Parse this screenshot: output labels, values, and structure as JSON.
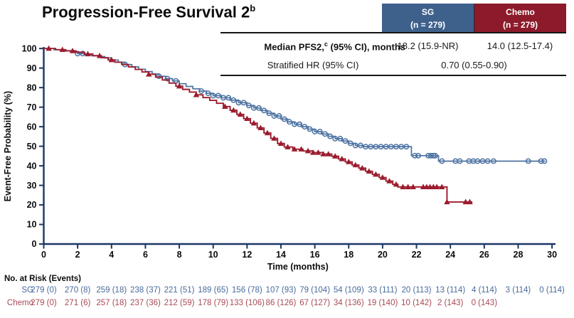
{
  "title": {
    "text": "Progression-Free Survival 2",
    "superscript": "b"
  },
  "summary_table": {
    "columns": [
      {
        "name": "SG",
        "n": "(n = 279)",
        "color": "#3e618c"
      },
      {
        "name": "Chemo",
        "n": "(n = 279)",
        "color": "#8c1a2b"
      }
    ],
    "rows": [
      {
        "label_pre": "Median PFS2,",
        "label_sup": "c",
        "label_post": " (95% CI), months",
        "sg": "18.2 (15.9-NR)",
        "chemo": "14.0 (12.5-17.4)"
      },
      {
        "label": "Stratified HR (95% CI)",
        "value": "0.70 (0.55-0.90)"
      }
    ]
  },
  "chart_data": {
    "type": "line",
    "subtype": "kaplan-meier-step",
    "title": "",
    "xlabel": "Time (months)",
    "ylabel": "Event-Free Probability (%)",
    "xlim": [
      0,
      30
    ],
    "ylim": [
      0,
      100
    ],
    "x_ticks": [
      0,
      2,
      4,
      6,
      8,
      10,
      12,
      14,
      16,
      18,
      20,
      22,
      24,
      26,
      28,
      30
    ],
    "y_ticks": [
      0,
      10,
      20,
      30,
      40,
      50,
      60,
      70,
      80,
      90,
      100
    ],
    "grid": false,
    "legend_position": "none",
    "axis_color": "#1b3765",
    "series": [
      {
        "name": "SG",
        "color": "#4c72a2",
        "marker": "circle",
        "steps": [
          [
            0,
            100
          ],
          [
            0.6,
            99.4
          ],
          [
            1.1,
            98.9
          ],
          [
            1.6,
            98.3
          ],
          [
            2.0,
            97.4
          ],
          [
            2.4,
            96.9
          ],
          [
            2.8,
            96.4
          ],
          [
            3.2,
            95.9
          ],
          [
            3.6,
            95.2
          ],
          [
            4.0,
            94.1
          ],
          [
            4.4,
            93.0
          ],
          [
            4.8,
            91.8
          ],
          [
            5.2,
            90.6
          ],
          [
            5.6,
            89.4
          ],
          [
            6.0,
            88.2
          ],
          [
            6.4,
            87.0
          ],
          [
            6.8,
            85.8
          ],
          [
            7.2,
            84.6
          ],
          [
            7.6,
            83.4
          ],
          [
            8.0,
            82.0
          ],
          [
            8.4,
            80.6
          ],
          [
            8.8,
            79.4
          ],
          [
            9.2,
            78.2
          ],
          [
            9.6,
            77.1
          ],
          [
            10.0,
            75.9
          ],
          [
            10.5,
            74.8
          ],
          [
            11.0,
            73.6
          ],
          [
            11.5,
            72.3
          ],
          [
            12.0,
            70.9
          ],
          [
            12.4,
            69.6
          ],
          [
            12.8,
            68.3
          ],
          [
            13.2,
            66.9
          ],
          [
            13.6,
            65.5
          ],
          [
            14.0,
            63.9
          ],
          [
            14.4,
            62.5
          ],
          [
            14.8,
            61.3
          ],
          [
            15.2,
            60.0
          ],
          [
            15.6,
            58.8
          ],
          [
            16.0,
            57.5
          ],
          [
            16.4,
            56.3
          ],
          [
            16.8,
            55.1
          ],
          [
            17.2,
            53.9
          ],
          [
            17.6,
            52.7
          ],
          [
            18.0,
            51.5
          ],
          [
            18.4,
            50.4
          ],
          [
            18.8,
            49.8
          ],
          [
            21.7,
            45.2
          ],
          [
            23.3,
            42.4
          ],
          [
            29.6,
            42.4
          ]
        ],
        "censor_times": [
          2.0,
          2.3,
          4.8,
          6.8,
          7.3,
          7.8,
          9.3,
          9.7,
          10.0,
          10.3,
          10.6,
          10.9,
          11.2,
          11.5,
          11.8,
          12.1,
          12.4,
          12.7,
          13.0,
          13.3,
          13.6,
          13.9,
          14.2,
          14.5,
          14.8,
          15.1,
          15.4,
          15.7,
          16.0,
          16.3,
          16.6,
          16.9,
          17.2,
          17.5,
          17.8,
          18.1,
          18.4,
          18.7,
          19.0,
          19.3,
          19.6,
          19.9,
          20.2,
          20.5,
          20.8,
          21.1,
          21.4,
          21.9,
          22.1,
          22.7,
          22.85,
          23.0,
          23.1,
          23.5,
          24.3,
          24.55,
          25.1,
          25.35,
          25.6,
          25.9,
          26.2,
          26.55,
          28.6,
          29.35,
          29.55
        ]
      },
      {
        "name": "Chemo",
        "color": "#9c1c2e",
        "marker": "triangle",
        "steps": [
          [
            0,
            100
          ],
          [
            0.7,
            99.4
          ],
          [
            1.3,
            98.8
          ],
          [
            1.9,
            98.1
          ],
          [
            2.4,
            97.2
          ],
          [
            2.9,
            96.3
          ],
          [
            3.4,
            95.3
          ],
          [
            3.8,
            94.2
          ],
          [
            4.2,
            93.0
          ],
          [
            4.6,
            91.8
          ],
          [
            5.0,
            90.6
          ],
          [
            5.4,
            89.3
          ],
          [
            5.8,
            88.0
          ],
          [
            6.2,
            86.8
          ],
          [
            6.6,
            85.4
          ],
          [
            7.0,
            83.9
          ],
          [
            7.4,
            82.3
          ],
          [
            7.8,
            80.7
          ],
          [
            8.2,
            79.1
          ],
          [
            8.6,
            77.7
          ],
          [
            9.0,
            76.3
          ],
          [
            9.4,
            74.9
          ],
          [
            9.8,
            73.5
          ],
          [
            10.2,
            72.0
          ],
          [
            10.6,
            70.3
          ],
          [
            11.0,
            68.4
          ],
          [
            11.4,
            66.3
          ],
          [
            11.8,
            64.1
          ],
          [
            12.2,
            61.8
          ],
          [
            12.6,
            59.4
          ],
          [
            13.0,
            56.8
          ],
          [
            13.4,
            54.0
          ],
          [
            13.8,
            51.4
          ],
          [
            14.2,
            49.6
          ],
          [
            14.7,
            48.5
          ],
          [
            15.3,
            47.6
          ],
          [
            15.9,
            46.8
          ],
          [
            16.5,
            46.0
          ],
          [
            17.0,
            44.9
          ],
          [
            17.4,
            43.5
          ],
          [
            17.8,
            42.0
          ],
          [
            18.2,
            40.4
          ],
          [
            18.6,
            38.8
          ],
          [
            19.0,
            37.2
          ],
          [
            19.4,
            35.6
          ],
          [
            19.8,
            34.0
          ],
          [
            20.2,
            32.2
          ],
          [
            20.6,
            30.5
          ],
          [
            20.9,
            29.2
          ],
          [
            23.8,
            21.5
          ],
          [
            25.3,
            21.5
          ]
        ],
        "censor_times": [
          0.3,
          1.1,
          1.7,
          2.6,
          3.3,
          4.0,
          6.2,
          8.0,
          9.0,
          10.7,
          11.2,
          11.6,
          12.0,
          12.4,
          12.8,
          13.2,
          13.6,
          14.0,
          14.4,
          14.8,
          15.2,
          15.6,
          15.9,
          16.2,
          16.5,
          16.8,
          17.2,
          17.6,
          18.0,
          18.4,
          18.8,
          19.2,
          19.6,
          20.0,
          20.4,
          20.8,
          21.2,
          21.5,
          21.8,
          22.4,
          22.6,
          22.8,
          23.0,
          23.2,
          23.5,
          23.8,
          24.9,
          25.15
        ]
      }
    ]
  },
  "risk_table": {
    "heading": "No. at Risk (Events)",
    "rows": [
      {
        "label": "SG",
        "color": "#4a6b9c",
        "values": [
          "279 (0)",
          "270 (8)",
          "259 (18)",
          "238 (37)",
          "221 (51)",
          "189 (65)",
          "156 (78)",
          "107 (93)",
          "79 (104)",
          "54 (109)",
          "33 (111)",
          "20 (113)",
          "13 (114)",
          "4 (114)",
          "3 (114)",
          "0 (114)"
        ]
      },
      {
        "label": "Chemo",
        "color": "#a84a55",
        "values": [
          "279 (0)",
          "271 (6)",
          "257 (18)",
          "237 (36)",
          "212 (59)",
          "178 (79)",
          "133 (106)",
          "86 (126)",
          "67 (127)",
          "34 (136)",
          "19 (140)",
          "10 (142)",
          "2 (143)",
          "0 (143)"
        ]
      }
    ]
  },
  "colors": {
    "axis": "#1b3765",
    "text": "#111111"
  }
}
